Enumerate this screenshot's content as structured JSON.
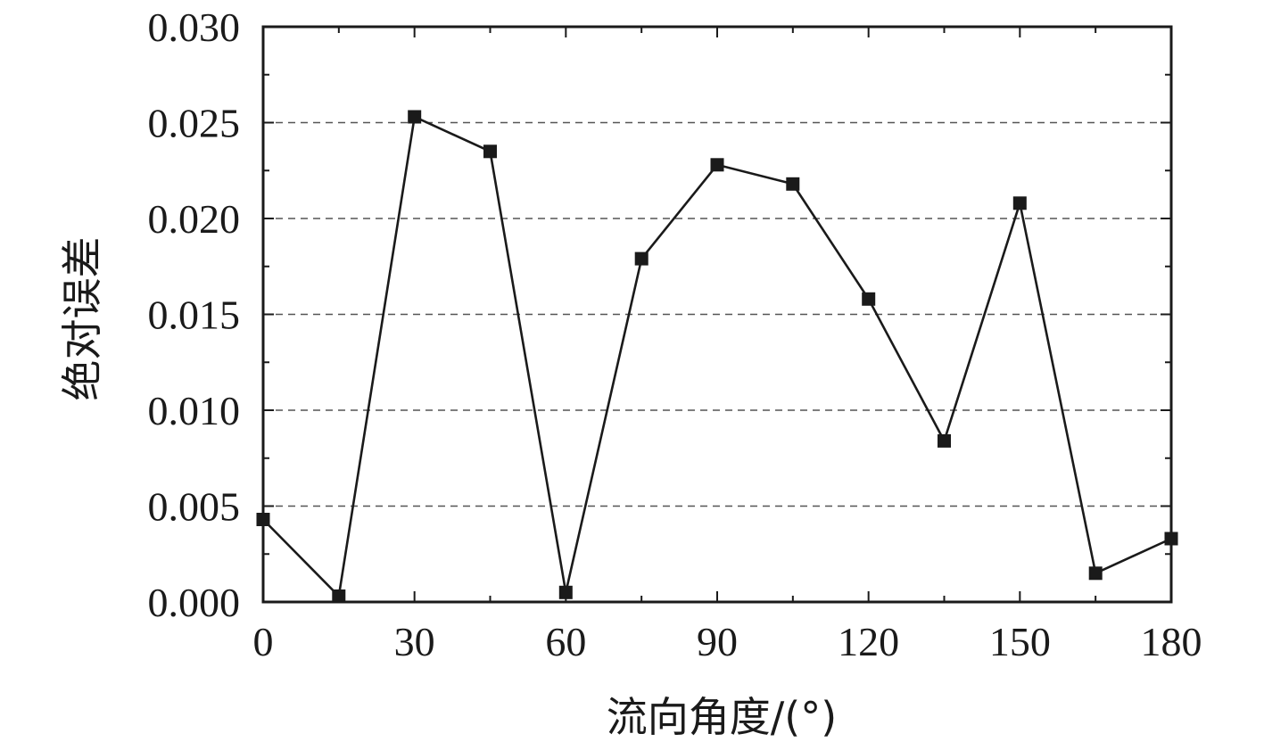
{
  "chart_data": {
    "type": "line",
    "title": "",
    "xlabel": "流向角度/(°)",
    "ylabel": "绝对误差",
    "xlim": [
      0,
      180
    ],
    "ylim": [
      0,
      0.03
    ],
    "x_ticks": [
      "0",
      "30",
      "60",
      "90",
      "120",
      "150",
      "180"
    ],
    "y_ticks": [
      "0.000",
      "0.005",
      "0.010",
      "0.015",
      "0.020",
      "0.025",
      "0.030"
    ],
    "grid": "horizontal dashed",
    "legend": "none",
    "marker": "square",
    "color": "#1a1a1a",
    "series": [
      {
        "x": [
          0,
          15,
          30,
          45,
          60,
          75,
          90,
          105,
          120,
          135,
          150,
          165,
          180
        ],
        "values": [
          0.0043,
          0.0003,
          0.0253,
          0.0235,
          0.0005,
          0.0179,
          0.0228,
          0.0218,
          0.0158,
          0.0084,
          0.0208,
          0.0015,
          0.0033
        ]
      }
    ]
  }
}
